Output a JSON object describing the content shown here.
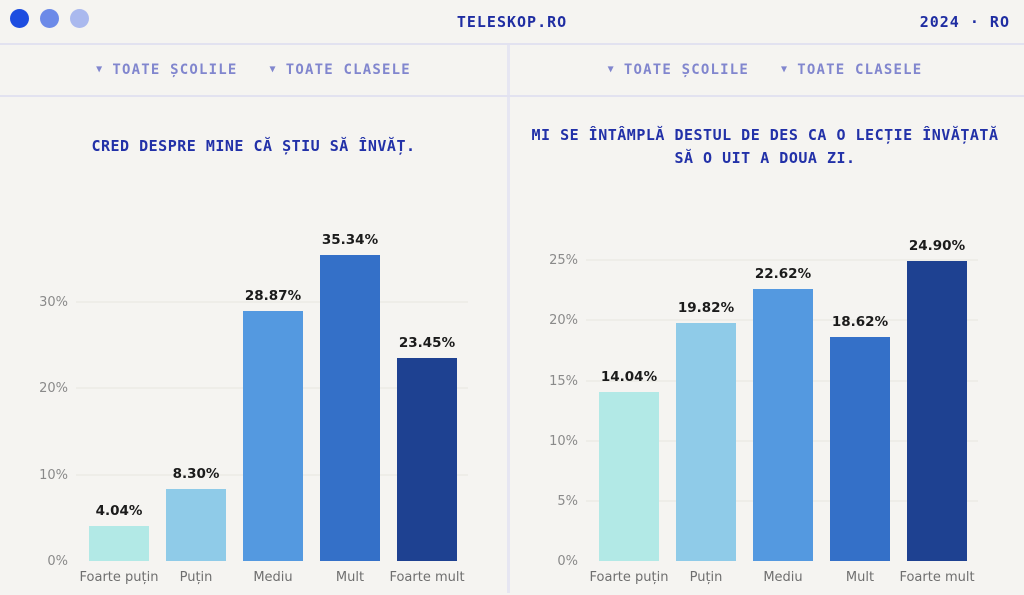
{
  "header": {
    "title": "TELESKOP.RO",
    "year_badge": "2024 · RO",
    "dot_colors": [
      "#1d4de0",
      "#6c8ae8",
      "#aab9ee"
    ]
  },
  "filters": {
    "caret": "▼",
    "schools_label": "TOATE ȘCOLILE",
    "classes_label": "TOATE CLASELE"
  },
  "colors": {
    "background": "#f5f4f1",
    "divider": "#e6e6f2",
    "title_navy": "#2231a8",
    "filter_text": "#8186ce",
    "value_label": "#1b1b1b",
    "axis_text": "#8a8a8a"
  },
  "chart_data": [
    {
      "type": "bar",
      "title": "CRED DESPRE MINE CĂ ȘTIU SĂ ÎNVĂȚ.",
      "categories": [
        "Foarte puțin",
        "Puțin",
        "Mediu",
        "Mult",
        "Foarte mult"
      ],
      "values": [
        4.04,
        8.3,
        28.87,
        35.34,
        23.45
      ],
      "value_labels": [
        "4.04%",
        "8.30%",
        "28.87%",
        "35.34%",
        "23.45%"
      ],
      "bar_colors": [
        "#b2e9e6",
        "#8fcbe8",
        "#5499e0",
        "#3470c8",
        "#1e4191"
      ],
      "yticks": [
        0,
        10,
        20,
        30
      ],
      "ytick_suffix": "%",
      "ylim": [
        0,
        38.4
      ],
      "xlabel": "",
      "ylabel": "",
      "grid": true,
      "legend": false
    },
    {
      "type": "bar",
      "title": "MI SE ÎNTÂMPLĂ DESTUL DE DES CA O LECȚIE ÎNVĂȚATĂ SĂ O UIT A DOUA ZI.",
      "categories": [
        "Foarte puțin",
        "Puțin",
        "Mediu",
        "Mult",
        "Foarte mult"
      ],
      "values": [
        14.04,
        19.82,
        22.62,
        18.62,
        24.9
      ],
      "value_labels": [
        "14.04%",
        "19.82%",
        "22.62%",
        "18.62%",
        "24.90%"
      ],
      "bar_colors": [
        "#b2e9e6",
        "#8fcbe8",
        "#5499e0",
        "#3470c8",
        "#1e4191"
      ],
      "yticks": [
        0,
        5,
        10,
        15,
        20,
        25
      ],
      "ytick_suffix": "%",
      "ylim": [
        0,
        27.6
      ],
      "xlabel": "",
      "ylabel": "",
      "grid": true,
      "legend": false
    }
  ]
}
